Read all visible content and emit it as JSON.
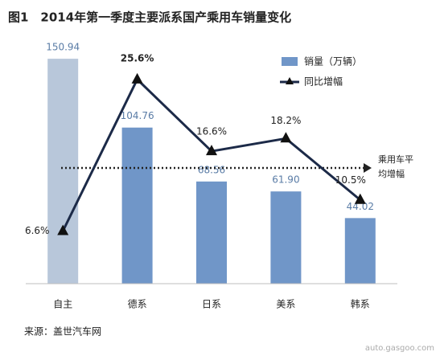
{
  "chart_data": {
    "type": "bar_line",
    "title": "图1　2014年第一季度主要派系国产乘用车销量变化",
    "source": "来源：盖世汽车网",
    "watermark": "auto.gasgoo.com",
    "categories": [
      "自主",
      "德系",
      "日系",
      "美系",
      "韩系"
    ],
    "series": [
      {
        "name": "销量（万辆）",
        "type": "bar",
        "color": "#7096c8",
        "colors": [
          "#b8c7da",
          "#7096c8",
          "#7096c8",
          "#7096c8",
          "#7096c8"
        ],
        "values": [
          150.94,
          104.76,
          68.56,
          61.9,
          44.02
        ],
        "value_labels": [
          "150.94",
          "104.76",
          "68.56",
          "61.90",
          "44.02"
        ]
      },
      {
        "name": "同比增幅",
        "type": "line",
        "axis": "y2",
        "color": "#1c2a48",
        "values": [
          6.6,
          25.6,
          16.6,
          18.2,
          10.5
        ],
        "value_labels": [
          "6.6%",
          "25.6%",
          "16.6%",
          "18.2%",
          "10.5%"
        ]
      }
    ],
    "average_line": {
      "value": 14.5,
      "label": [
        "乘用车平",
        "均增幅"
      ]
    },
    "ylim": [
      0,
      151
    ],
    "y2lim": [
      0,
      28.2
    ]
  }
}
